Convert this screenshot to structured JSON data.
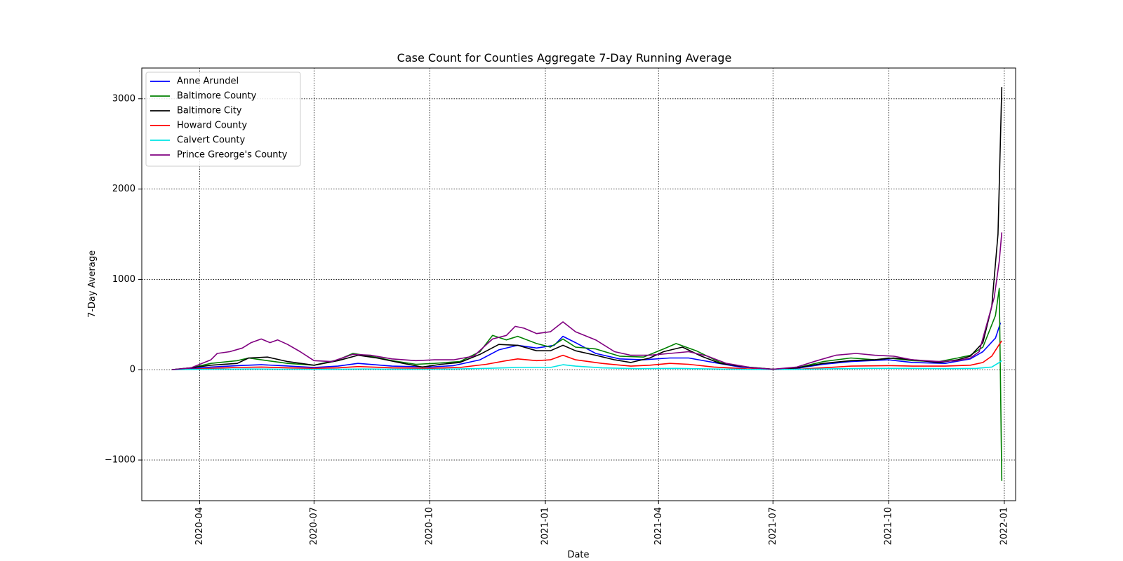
{
  "chart_data": {
    "type": "line",
    "title": "Case Count for Counties Aggregate 7-Day Running Average",
    "xlabel": "Date",
    "ylabel": "7-Day Average",
    "x_range": [
      "2020-02-15",
      "2022-01-10"
    ],
    "ylim": [
      -1450,
      3340
    ],
    "x_ticks": [
      "2020-04",
      "2020-07",
      "2020-10",
      "2021-01",
      "2021-04",
      "2021-07",
      "2021-10",
      "2022-01"
    ],
    "y_ticks": [
      -1000,
      0,
      1000,
      2000,
      3000
    ],
    "y_tick_labels": [
      "−1000",
      "0",
      "1000",
      "2000",
      "3000"
    ],
    "grid": true,
    "legend_position": "top-left",
    "series": [
      {
        "name": "Anne Arundel",
        "color": "#0000ff",
        "points": [
          [
            "2020-03-10",
            0
          ],
          [
            "2020-03-25",
            10
          ],
          [
            "2020-04-10",
            30
          ],
          [
            "2020-05-01",
            45
          ],
          [
            "2020-05-20",
            55
          ],
          [
            "2020-06-05",
            45
          ],
          [
            "2020-07-01",
            25
          ],
          [
            "2020-07-20",
            40
          ],
          [
            "2020-08-05",
            70
          ],
          [
            "2020-09-01",
            40
          ],
          [
            "2020-10-01",
            30
          ],
          [
            "2020-10-20",
            45
          ],
          [
            "2020-11-10",
            110
          ],
          [
            "2020-11-25",
            220
          ],
          [
            "2020-12-10",
            270
          ],
          [
            "2020-12-25",
            240
          ],
          [
            "2021-01-08",
            270
          ],
          [
            "2021-01-15",
            370
          ],
          [
            "2021-01-25",
            300
          ],
          [
            "2021-02-10",
            180
          ],
          [
            "2021-03-01",
            120
          ],
          [
            "2021-03-20",
            110
          ],
          [
            "2021-04-10",
            130
          ],
          [
            "2021-04-25",
            130
          ],
          [
            "2021-05-15",
            80
          ],
          [
            "2021-06-05",
            30
          ],
          [
            "2021-07-01",
            5
          ],
          [
            "2021-07-20",
            15
          ],
          [
            "2021-08-10",
            60
          ],
          [
            "2021-09-01",
            90
          ],
          [
            "2021-10-01",
            110
          ],
          [
            "2021-10-20",
            80
          ],
          [
            "2021-11-15",
            70
          ],
          [
            "2021-12-05",
            120
          ],
          [
            "2021-12-15",
            200
          ],
          [
            "2021-12-25",
            350
          ],
          [
            "2021-12-29",
            520
          ]
        ]
      },
      {
        "name": "Baltimore County",
        "color": "#008000",
        "points": [
          [
            "2020-03-10",
            0
          ],
          [
            "2020-03-25",
            20
          ],
          [
            "2020-04-10",
            70
          ],
          [
            "2020-05-01",
            100
          ],
          [
            "2020-05-10",
            130
          ],
          [
            "2020-05-20",
            110
          ],
          [
            "2020-06-10",
            70
          ],
          [
            "2020-07-01",
            50
          ],
          [
            "2020-07-20",
            110
          ],
          [
            "2020-08-01",
            180
          ],
          [
            "2020-08-15",
            150
          ],
          [
            "2020-09-01",
            100
          ],
          [
            "2020-09-20",
            60
          ],
          [
            "2020-10-05",
            70
          ],
          [
            "2020-10-25",
            90
          ],
          [
            "2020-11-10",
            200
          ],
          [
            "2020-11-20",
            380
          ],
          [
            "2020-12-01",
            330
          ],
          [
            "2020-12-10",
            370
          ],
          [
            "2020-12-25",
            290
          ],
          [
            "2021-01-05",
            250
          ],
          [
            "2021-01-15",
            340
          ],
          [
            "2021-01-25",
            250
          ],
          [
            "2021-02-10",
            230
          ],
          [
            "2021-03-01",
            150
          ],
          [
            "2021-03-20",
            140
          ],
          [
            "2021-04-05",
            230
          ],
          [
            "2021-04-15",
            290
          ],
          [
            "2021-05-01",
            210
          ],
          [
            "2021-05-20",
            80
          ],
          [
            "2021-06-10",
            30
          ],
          [
            "2021-07-01",
            5
          ],
          [
            "2021-07-20",
            20
          ],
          [
            "2021-08-10",
            90
          ],
          [
            "2021-09-01",
            130
          ],
          [
            "2021-09-20",
            110
          ],
          [
            "2021-10-01",
            130
          ],
          [
            "2021-10-20",
            100
          ],
          [
            "2021-11-10",
            90
          ],
          [
            "2021-11-25",
            130
          ],
          [
            "2021-12-05",
            160
          ],
          [
            "2021-12-15",
            250
          ],
          [
            "2021-12-25",
            600
          ],
          [
            "2021-12-28",
            900
          ],
          [
            "2021-12-30",
            -1230
          ]
        ]
      },
      {
        "name": "Baltimore City",
        "color": "#000000",
        "points": [
          [
            "2020-03-10",
            0
          ],
          [
            "2020-03-25",
            20
          ],
          [
            "2020-04-10",
            50
          ],
          [
            "2020-05-01",
            70
          ],
          [
            "2020-05-10",
            130
          ],
          [
            "2020-05-25",
            140
          ],
          [
            "2020-06-10",
            90
          ],
          [
            "2020-07-01",
            50
          ],
          [
            "2020-07-20",
            100
          ],
          [
            "2020-08-05",
            160
          ],
          [
            "2020-08-20",
            130
          ],
          [
            "2020-09-10",
            70
          ],
          [
            "2020-09-25",
            30
          ],
          [
            "2020-10-10",
            60
          ],
          [
            "2020-10-25",
            80
          ],
          [
            "2020-11-10",
            170
          ],
          [
            "2020-11-25",
            280
          ],
          [
            "2020-12-10",
            270
          ],
          [
            "2020-12-25",
            210
          ],
          [
            "2021-01-05",
            210
          ],
          [
            "2021-01-15",
            270
          ],
          [
            "2021-01-25",
            210
          ],
          [
            "2021-02-10",
            160
          ],
          [
            "2021-02-25",
            110
          ],
          [
            "2021-03-10",
            80
          ],
          [
            "2021-03-25",
            130
          ],
          [
            "2021-04-05",
            200
          ],
          [
            "2021-04-20",
            250
          ],
          [
            "2021-05-05",
            150
          ],
          [
            "2021-05-20",
            70
          ],
          [
            "2021-06-10",
            30
          ],
          [
            "2021-07-01",
            5
          ],
          [
            "2021-07-20",
            20
          ],
          [
            "2021-08-10",
            70
          ],
          [
            "2021-09-01",
            100
          ],
          [
            "2021-09-20",
            110
          ],
          [
            "2021-10-05",
            130
          ],
          [
            "2021-10-20",
            110
          ],
          [
            "2021-11-10",
            80
          ],
          [
            "2021-11-25",
            110
          ],
          [
            "2021-12-05",
            150
          ],
          [
            "2021-12-15",
            300
          ],
          [
            "2021-12-22",
            700
          ],
          [
            "2021-12-27",
            1500
          ],
          [
            "2021-12-30",
            3130
          ]
        ]
      },
      {
        "name": "Howard County",
        "color": "#ff0000",
        "points": [
          [
            "2020-03-10",
            0
          ],
          [
            "2020-03-25",
            5
          ],
          [
            "2020-04-10",
            15
          ],
          [
            "2020-05-01",
            25
          ],
          [
            "2020-05-20",
            30
          ],
          [
            "2020-06-10",
            20
          ],
          [
            "2020-07-01",
            15
          ],
          [
            "2020-07-20",
            20
          ],
          [
            "2020-08-05",
            35
          ],
          [
            "2020-09-01",
            20
          ],
          [
            "2020-10-01",
            15
          ],
          [
            "2020-10-25",
            25
          ],
          [
            "2020-11-15",
            60
          ],
          [
            "2020-12-01",
            100
          ],
          [
            "2020-12-10",
            120
          ],
          [
            "2020-12-25",
            100
          ],
          [
            "2021-01-05",
            110
          ],
          [
            "2021-01-15",
            160
          ],
          [
            "2021-01-25",
            110
          ],
          [
            "2021-02-15",
            70
          ],
          [
            "2021-03-10",
            40
          ],
          [
            "2021-03-25",
            50
          ],
          [
            "2021-04-10",
            70
          ],
          [
            "2021-04-25",
            60
          ],
          [
            "2021-05-15",
            30
          ],
          [
            "2021-06-10",
            10
          ],
          [
            "2021-07-01",
            3
          ],
          [
            "2021-07-20",
            5
          ],
          [
            "2021-08-10",
            20
          ],
          [
            "2021-09-01",
            40
          ],
          [
            "2021-10-01",
            45
          ],
          [
            "2021-10-20",
            40
          ],
          [
            "2021-11-15",
            40
          ],
          [
            "2021-12-05",
            50
          ],
          [
            "2021-12-15",
            80
          ],
          [
            "2021-12-22",
            150
          ],
          [
            "2021-12-28",
            280
          ],
          [
            "2021-12-30",
            320
          ]
        ]
      },
      {
        "name": "Calvert County",
        "color": "#00e5e5",
        "points": [
          [
            "2020-03-10",
            0
          ],
          [
            "2020-04-10",
            5
          ],
          [
            "2020-05-10",
            8
          ],
          [
            "2020-06-10",
            6
          ],
          [
            "2020-07-10",
            4
          ],
          [
            "2020-08-10",
            8
          ],
          [
            "2020-09-10",
            5
          ],
          [
            "2020-10-10",
            6
          ],
          [
            "2020-11-15",
            15
          ],
          [
            "2020-12-10",
            25
          ],
          [
            "2021-01-05",
            25
          ],
          [
            "2021-01-15",
            55
          ],
          [
            "2021-01-25",
            40
          ],
          [
            "2021-02-15",
            20
          ],
          [
            "2021-03-15",
            12
          ],
          [
            "2021-04-15",
            15
          ],
          [
            "2021-05-15",
            8
          ],
          [
            "2021-06-15",
            3
          ],
          [
            "2021-07-15",
            3
          ],
          [
            "2021-08-15",
            10
          ],
          [
            "2021-09-15",
            15
          ],
          [
            "2021-10-15",
            15
          ],
          [
            "2021-11-15",
            12
          ],
          [
            "2021-12-10",
            15
          ],
          [
            "2021-12-22",
            30
          ],
          [
            "2021-12-28",
            80
          ],
          [
            "2021-12-30",
            100
          ]
        ]
      },
      {
        "name": "Prince Greorge's County",
        "color": "#800080",
        "points": [
          [
            "2020-03-10",
            0
          ],
          [
            "2020-03-25",
            20
          ],
          [
            "2020-04-10",
            110
          ],
          [
            "2020-04-15",
            180
          ],
          [
            "2020-04-25",
            200
          ],
          [
            "2020-05-05",
            240
          ],
          [
            "2020-05-12",
            300
          ],
          [
            "2020-05-20",
            340
          ],
          [
            "2020-05-27",
            300
          ],
          [
            "2020-06-02",
            330
          ],
          [
            "2020-06-10",
            280
          ],
          [
            "2020-06-20",
            200
          ],
          [
            "2020-07-01",
            100
          ],
          [
            "2020-07-15",
            90
          ],
          [
            "2020-08-01",
            170
          ],
          [
            "2020-08-15",
            160
          ],
          [
            "2020-09-01",
            120
          ],
          [
            "2020-09-20",
            100
          ],
          [
            "2020-10-05",
            110
          ],
          [
            "2020-10-20",
            110
          ],
          [
            "2020-11-05",
            150
          ],
          [
            "2020-11-20",
            340
          ],
          [
            "2020-12-01",
            380
          ],
          [
            "2020-12-08",
            480
          ],
          [
            "2020-12-15",
            460
          ],
          [
            "2020-12-25",
            400
          ],
          [
            "2021-01-05",
            420
          ],
          [
            "2021-01-15",
            530
          ],
          [
            "2021-01-25",
            420
          ],
          [
            "2021-02-10",
            330
          ],
          [
            "2021-02-25",
            200
          ],
          [
            "2021-03-10",
            160
          ],
          [
            "2021-03-25",
            160
          ],
          [
            "2021-04-10",
            180
          ],
          [
            "2021-04-25",
            200
          ],
          [
            "2021-05-10",
            150
          ],
          [
            "2021-05-25",
            70
          ],
          [
            "2021-06-15",
            20
          ],
          [
            "2021-07-01",
            5
          ],
          [
            "2021-07-20",
            30
          ],
          [
            "2021-08-05",
            100
          ],
          [
            "2021-08-20",
            160
          ],
          [
            "2021-09-05",
            180
          ],
          [
            "2021-09-20",
            160
          ],
          [
            "2021-10-05",
            150
          ],
          [
            "2021-10-20",
            110
          ],
          [
            "2021-11-10",
            90
          ],
          [
            "2021-11-25",
            100
          ],
          [
            "2021-12-05",
            130
          ],
          [
            "2021-12-12",
            200
          ],
          [
            "2021-12-18",
            500
          ],
          [
            "2021-12-24",
            800
          ],
          [
            "2021-12-28",
            1200
          ],
          [
            "2021-12-30",
            1520
          ]
        ]
      }
    ]
  }
}
